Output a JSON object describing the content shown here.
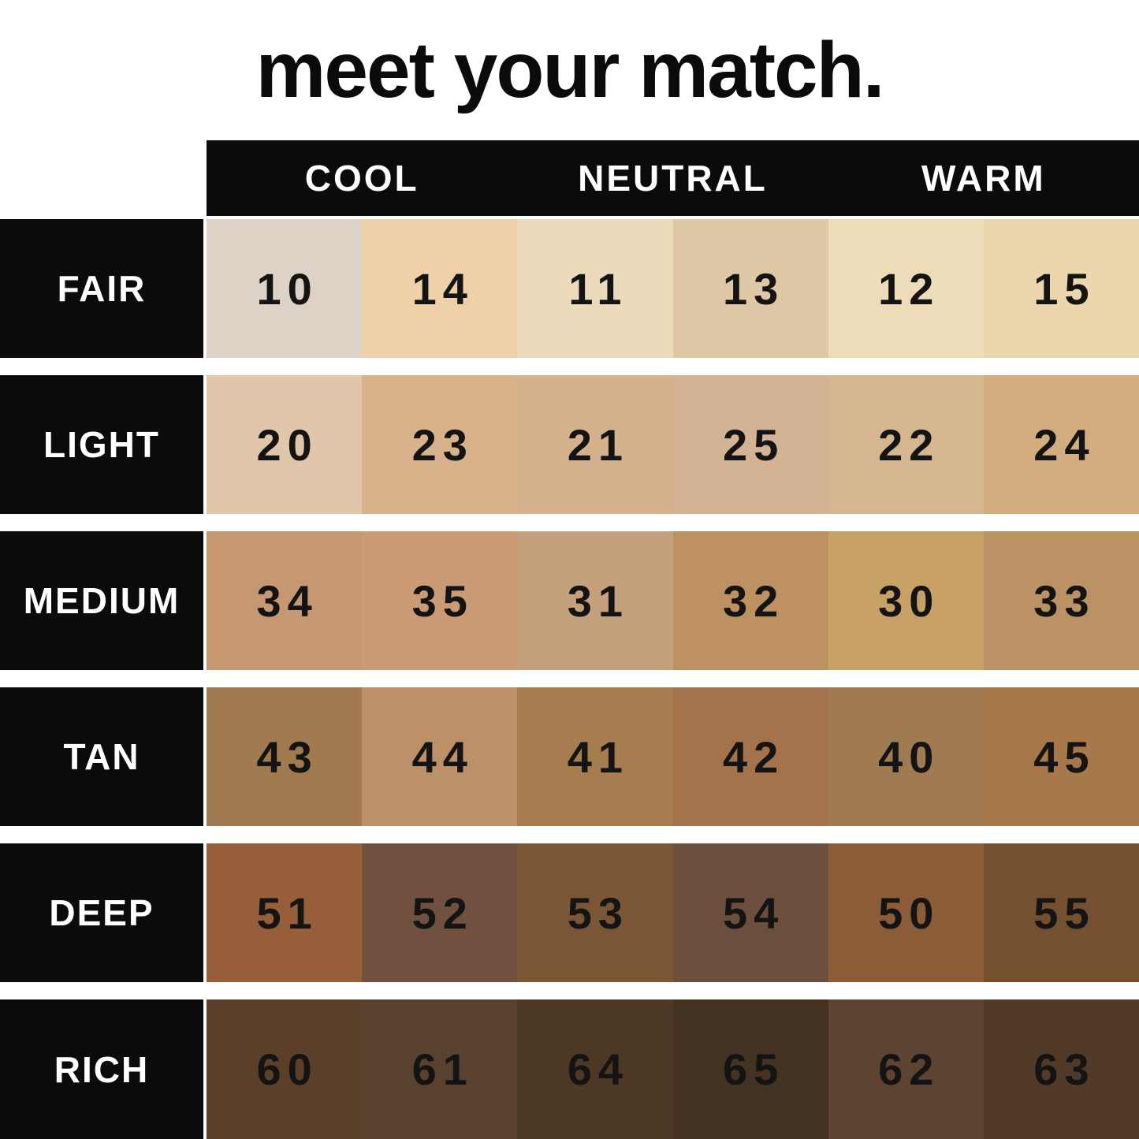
{
  "title": "meet your match.",
  "header": {
    "columns": [
      {
        "label": "COOL"
      },
      {
        "label": "NEUTRAL"
      },
      {
        "label": "WARM"
      }
    ]
  },
  "colors": {
    "header_bg": "#0b0b0b",
    "header_text": "#ffffff",
    "row_label_bg": "#0b0b0b",
    "row_label_text": "#ffffff",
    "shade_number_text": "#141414",
    "background": "#ffffff"
  },
  "table": {
    "rows": [
      {
        "label": "FAIR",
        "cells": [
          {
            "shade": "10",
            "color": "#ddd2c6"
          },
          {
            "shade": "14",
            "color": "#eed1a8"
          },
          {
            "shade": "11",
            "color": "#ebdbba"
          },
          {
            "shade": "13",
            "color": "#dec8a5"
          },
          {
            "shade": "12",
            "color": "#eedcb8"
          },
          {
            "shade": "15",
            "color": "#ebd6ad"
          }
        ]
      },
      {
        "label": "LIGHT",
        "cells": [
          {
            "shade": "20",
            "color": "#e1c7a9"
          },
          {
            "shade": "23",
            "color": "#d8b28b"
          },
          {
            "shade": "21",
            "color": "#d6b18d"
          },
          {
            "shade": "25",
            "color": "#d4b294"
          },
          {
            "shade": "22",
            "color": "#d6b591"
          },
          {
            "shade": "24",
            "color": "#d3ad80"
          }
        ]
      },
      {
        "label": "MEDIUM",
        "cells": [
          {
            "shade": "34",
            "color": "#c69872"
          },
          {
            "shade": "35",
            "color": "#cb9b76"
          },
          {
            "shade": "31",
            "color": "#c5a07d"
          },
          {
            "shade": "32",
            "color": "#bd9160"
          },
          {
            "shade": "30",
            "color": "#c8a167"
          },
          {
            "shade": "33",
            "color": "#bb9264"
          }
        ]
      },
      {
        "label": "TAN",
        "cells": [
          {
            "shade": "43",
            "color": "#a27a50"
          },
          {
            "shade": "44",
            "color": "#bc9167"
          },
          {
            "shade": "41",
            "color": "#a57d4e"
          },
          {
            "shade": "42",
            "color": "#a4724b"
          },
          {
            "shade": "40",
            "color": "#a07b51"
          },
          {
            "shade": "45",
            "color": "#a7784a"
          }
        ]
      },
      {
        "label": "DEEP",
        "cells": [
          {
            "shade": "51",
            "color": "#975e3a"
          },
          {
            "shade": "52",
            "color": "#705140"
          },
          {
            "shade": "53",
            "color": "#7a5637"
          },
          {
            "shade": "54",
            "color": "#6c4e3c"
          },
          {
            "shade": "50",
            "color": "#8c5c38"
          },
          {
            "shade": "55",
            "color": "#745031"
          }
        ]
      },
      {
        "label": "RICH",
        "cells": [
          {
            "shade": "60",
            "color": "#5b4029"
          },
          {
            "shade": "61",
            "color": "#594130"
          },
          {
            "shade": "64",
            "color": "#4d3725"
          },
          {
            "shade": "65",
            "color": "#443223"
          },
          {
            "shade": "62",
            "color": "#5c4332"
          },
          {
            "shade": "63",
            "color": "#523a29"
          }
        ]
      }
    ]
  }
}
